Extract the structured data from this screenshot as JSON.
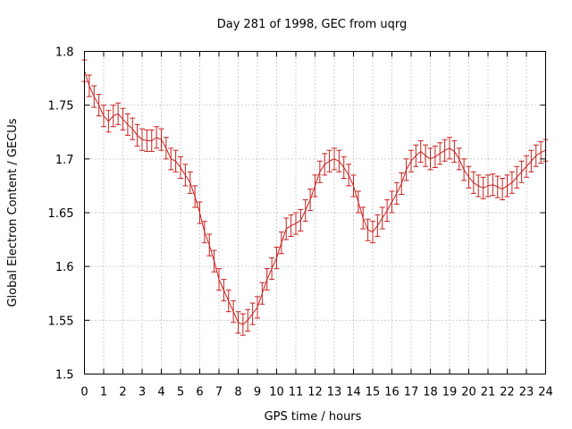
{
  "chart_data": {
    "type": "line",
    "title": "Day 281 of 1998, GEC from uqrg",
    "xlabel": "GPS time / hours",
    "ylabel": "Global Electron Content / GECUs",
    "xlim": [
      0,
      24
    ],
    "ylim": [
      1.5,
      1.8
    ],
    "xticks": [
      "0",
      "1",
      "2",
      "3",
      "4",
      "5",
      "6",
      "7",
      "8",
      "9",
      "10",
      "11",
      "12",
      "13",
      "14",
      "15",
      "16",
      "17",
      "18",
      "19",
      "20",
      "21",
      "22",
      "23",
      "24"
    ],
    "yticks": [
      "1.5",
      "1.55",
      "1.6",
      "1.65",
      "1.7",
      "1.75",
      "1.8"
    ],
    "grid": true,
    "error_bar": 0.01,
    "color": "#c8201e",
    "series": [
      {
        "name": "GEC",
        "x": [
          0,
          0.25,
          0.5,
          0.75,
          1,
          1.25,
          1.5,
          1.75,
          2,
          2.25,
          2.5,
          2.75,
          3,
          3.25,
          3.5,
          3.75,
          4,
          4.25,
          4.5,
          4.75,
          5,
          5.25,
          5.5,
          5.75,
          6,
          6.25,
          6.5,
          6.75,
          7,
          7.25,
          7.5,
          7.75,
          8,
          8.25,
          8.5,
          8.75,
          9,
          9.25,
          9.5,
          9.75,
          10,
          10.25,
          10.5,
          10.75,
          11,
          11.25,
          11.5,
          11.75,
          12,
          12.25,
          12.5,
          12.75,
          13,
          13.25,
          13.5,
          13.75,
          14,
          14.25,
          14.5,
          14.75,
          15,
          15.25,
          15.5,
          15.75,
          16,
          16.25,
          16.5,
          16.75,
          17,
          17.25,
          17.5,
          17.75,
          18,
          18.25,
          18.5,
          18.75,
          19,
          19.25,
          19.5,
          19.75,
          20,
          20.25,
          20.5,
          20.75,
          21,
          21.25,
          21.5,
          21.75,
          22,
          22.25,
          22.5,
          22.75,
          23,
          23.25,
          23.5,
          23.75,
          24
        ],
        "values": [
          1.782,
          1.768,
          1.758,
          1.75,
          1.74,
          1.735,
          1.74,
          1.742,
          1.737,
          1.732,
          1.728,
          1.722,
          1.718,
          1.717,
          1.717,
          1.72,
          1.718,
          1.71,
          1.7,
          1.698,
          1.692,
          1.685,
          1.678,
          1.665,
          1.65,
          1.632,
          1.62,
          1.605,
          1.588,
          1.578,
          1.568,
          1.558,
          1.548,
          1.546,
          1.55,
          1.556,
          1.562,
          1.575,
          1.588,
          1.598,
          1.608,
          1.622,
          1.635,
          1.638,
          1.64,
          1.643,
          1.652,
          1.662,
          1.675,
          1.688,
          1.695,
          1.698,
          1.7,
          1.698,
          1.692,
          1.685,
          1.675,
          1.66,
          1.645,
          1.634,
          1.632,
          1.638,
          1.645,
          1.652,
          1.66,
          1.668,
          1.677,
          1.69,
          1.698,
          1.703,
          1.707,
          1.703,
          1.7,
          1.702,
          1.705,
          1.708,
          1.71,
          1.707,
          1.7,
          1.69,
          1.683,
          1.678,
          1.675,
          1.673,
          1.675,
          1.676,
          1.674,
          1.672,
          1.675,
          1.678,
          1.683,
          1.688,
          1.693,
          1.698,
          1.703,
          1.706,
          1.708
        ]
      }
    ]
  }
}
